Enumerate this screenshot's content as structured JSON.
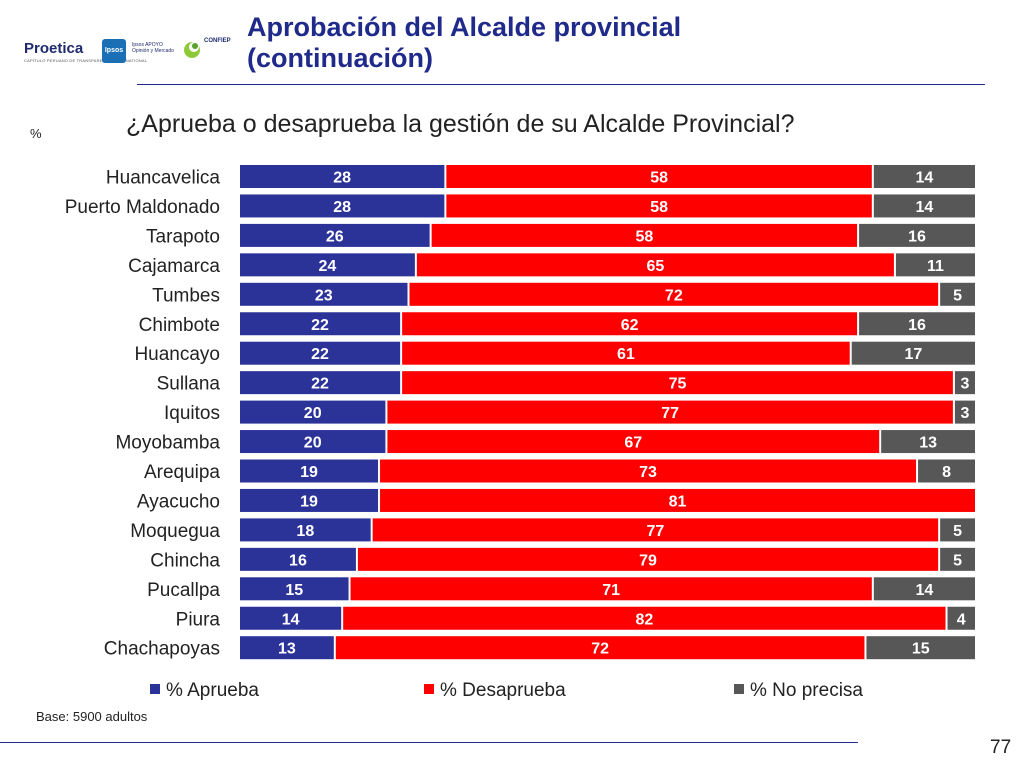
{
  "header": {
    "title_line1": "Aprobación del Alcalde provincial",
    "title_line2": "(continuación)"
  },
  "logos": {
    "proetica": "Proetica",
    "proetica_sub": "CAPÍTULO PERUANO DE TRANSPARENCY INTERNATIONAL",
    "ipsos": "Ipsos",
    "ipsos_apoyo_1": "Ipsos APOYO",
    "ipsos_apoyo_2": "Opinión y Mercado",
    "confiep": "CONFIEP"
  },
  "chart_data": {
    "type": "bar",
    "orientation": "horizontal",
    "stacked": true,
    "title": "¿Aprueba o desaprueba la gestión de su Alcalde Provincial?",
    "unit": "%",
    "categories": [
      "Huancavelica",
      "Puerto Maldonado",
      "Tarapoto",
      "Cajamarca",
      "Tumbes",
      "Chimbote",
      "Huancayo",
      "Sullana",
      "Iquitos",
      "Moyobamba",
      "Arequipa",
      "Ayacucho",
      "Moquegua",
      "Chincha",
      "Pucallpa",
      "Piura",
      "Chachapoyas"
    ],
    "series": [
      {
        "name": "% Aprueba",
        "color": "#2b3399",
        "values": [
          28,
          28,
          26,
          24,
          23,
          22,
          22,
          22,
          20,
          20,
          19,
          19,
          18,
          16,
          15,
          14,
          13
        ]
      },
      {
        "name": "% Desaprueba",
        "color": "#ff0000",
        "values": [
          58,
          58,
          58,
          65,
          72,
          62,
          61,
          75,
          77,
          67,
          73,
          81,
          77,
          79,
          71,
          82,
          72
        ]
      },
      {
        "name": "% No precisa",
        "color": "#575757",
        "values": [
          14,
          14,
          16,
          11,
          5,
          16,
          17,
          3,
          3,
          13,
          8,
          0,
          5,
          5,
          14,
          4,
          15
        ]
      }
    ],
    "xlim": [
      0,
      100
    ],
    "legend_position": "bottom",
    "grid": false
  },
  "footer": {
    "base_note": "Base: 5900 adultos",
    "page_number": "77"
  }
}
